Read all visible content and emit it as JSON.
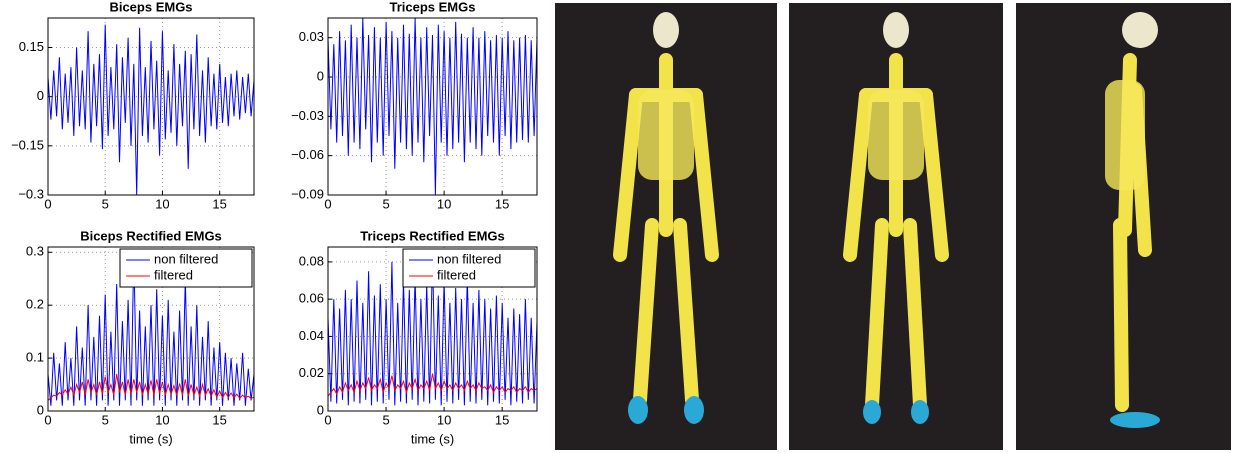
{
  "chart_data": [
    {
      "type": "line",
      "title": "Biceps EMGs",
      "color": "#0000ff",
      "x": [
        0,
        0.25,
        0.5,
        0.75,
        1,
        1.25,
        1.5,
        1.75,
        2,
        2.25,
        2.5,
        2.75,
        3,
        3.25,
        3.5,
        3.75,
        4,
        4.25,
        4.5,
        4.75,
        5,
        5.25,
        5.5,
        5.75,
        6,
        6.25,
        6.5,
        6.75,
        7,
        7.25,
        7.5,
        7.75,
        8,
        8.25,
        8.5,
        8.75,
        9,
        9.25,
        9.5,
        9.75,
        10,
        10.25,
        10.5,
        10.75,
        11,
        11.25,
        11.5,
        11.75,
        12,
        12.25,
        12.5,
        12.75,
        13,
        13.25,
        13.5,
        13.75,
        14,
        14.25,
        14.5,
        14.75,
        15,
        15.25,
        15.5,
        15.75,
        16,
        16.25,
        16.5,
        16.75,
        17,
        17.25,
        17.5,
        17.75,
        18
      ],
      "values": [
        0.06,
        -0.07,
        0.08,
        -0.06,
        0.12,
        -0.1,
        0.07,
        -0.08,
        0.09,
        -0.12,
        0.15,
        -0.09,
        0.08,
        -0.1,
        0.2,
        -0.14,
        0.1,
        -0.09,
        0.13,
        -0.16,
        0.22,
        -0.12,
        0.09,
        -0.1,
        0.16,
        -0.2,
        0.12,
        -0.08,
        0.18,
        -0.15,
        0.1,
        -0.3,
        0.21,
        -0.12,
        0.09,
        -0.14,
        0.17,
        -0.1,
        0.11,
        -0.18,
        0.2,
        -0.13,
        0.08,
        -0.11,
        0.16,
        -0.15,
        0.1,
        -0.09,
        0.14,
        -0.22,
        0.13,
        -0.1,
        0.19,
        -0.12,
        0.08,
        -0.14,
        0.12,
        -0.09,
        0.07,
        -0.1,
        0.1,
        -0.08,
        0.06,
        -0.09,
        0.07,
        -0.06,
        0.08,
        -0.07,
        0.06,
        -0.05,
        0.07,
        -0.06,
        0.05
      ],
      "xlim": [
        0,
        18
      ],
      "xticks": [
        0,
        5,
        10,
        15
      ],
      "ylim": [
        -0.3,
        0.24
      ],
      "yticks": [
        {
          "value": -0.3,
          "label": "−0.3"
        },
        {
          "value": -0.15,
          "label": "−0.15"
        },
        0,
        0.15
      ],
      "grid": true
    },
    {
      "type": "line",
      "title": "Triceps EMGs",
      "color": "#0000ff",
      "x": [
        0,
        0.25,
        0.5,
        0.75,
        1,
        1.25,
        1.5,
        1.75,
        2,
        2.25,
        2.5,
        2.75,
        3,
        3.25,
        3.5,
        3.75,
        4,
        4.25,
        4.5,
        4.75,
        5,
        5.25,
        5.5,
        5.75,
        6,
        6.25,
        6.5,
        6.75,
        7,
        7.25,
        7.5,
        7.75,
        8,
        8.25,
        8.5,
        8.75,
        9,
        9.25,
        9.5,
        9.75,
        10,
        10.25,
        10.5,
        10.75,
        11,
        11.25,
        11.5,
        11.75,
        12,
        12.25,
        12.5,
        12.75,
        13,
        13.25,
        13.5,
        13.75,
        14,
        14.25,
        14.5,
        14.75,
        15,
        15.25,
        15.5,
        15.75,
        16,
        16.25,
        16.5,
        16.75,
        17,
        17.25,
        17.5,
        17.75,
        18
      ],
      "values": [
        0.03,
        -0.04,
        0.025,
        -0.05,
        0.035,
        -0.045,
        0.028,
        -0.06,
        0.04,
        -0.05,
        0.03,
        -0.055,
        0.045,
        -0.04,
        0.032,
        -0.065,
        0.038,
        -0.05,
        0.03,
        -0.06,
        0.042,
        -0.045,
        0.035,
        -0.07,
        0.03,
        -0.05,
        0.04,
        -0.055,
        0.033,
        -0.06,
        0.045,
        -0.05,
        0.03,
        -0.065,
        0.038,
        -0.045,
        0.032,
        -0.09,
        0.04,
        -0.05,
        0.035,
        -0.06,
        0.03,
        -0.055,
        0.042,
        -0.05,
        0.033,
        -0.065,
        0.03,
        -0.05,
        0.038,
        -0.055,
        0.03,
        -0.06,
        0.035,
        -0.045,
        0.028,
        -0.05,
        0.032,
        -0.06,
        0.03,
        -0.045,
        0.035,
        -0.055,
        0.028,
        -0.05,
        0.03,
        -0.048,
        0.032,
        -0.05,
        0.028,
        -0.045,
        0.03
      ],
      "xlim": [
        0,
        18
      ],
      "xticks": [
        0,
        5,
        10,
        15
      ],
      "ylim": [
        -0.09,
        0.045
      ],
      "yticks": [
        {
          "value": -0.09,
          "label": "−0.09"
        },
        {
          "value": -0.06,
          "label": "−0.06"
        },
        {
          "value": -0.03,
          "label": "−0.03"
        },
        0,
        0.03
      ],
      "grid": true
    },
    {
      "type": "line",
      "title": "Biceps Rectified EMGs",
      "x_label": "time (s)",
      "legend": "upper right",
      "x": [
        0,
        0.25,
        0.5,
        0.75,
        1,
        1.25,
        1.5,
        1.75,
        2,
        2.25,
        2.5,
        2.75,
        3,
        3.25,
        3.5,
        3.75,
        4,
        4.25,
        4.5,
        4.75,
        5,
        5.25,
        5.5,
        5.75,
        6,
        6.25,
        6.5,
        6.75,
        7,
        7.25,
        7.5,
        7.75,
        8,
        8.25,
        8.5,
        8.75,
        9,
        9.25,
        9.5,
        9.75,
        10,
        10.25,
        10.5,
        10.75,
        11,
        11.25,
        11.5,
        11.75,
        12,
        12.25,
        12.5,
        12.75,
        13,
        13.25,
        13.5,
        13.75,
        14,
        14.25,
        14.5,
        14.75,
        15,
        15.25,
        15.5,
        15.75,
        16,
        16.25,
        16.5,
        16.75,
        17,
        17.25,
        17.5,
        17.75,
        18
      ],
      "series": [
        {
          "name": "non filtered",
          "color": "#0000ff",
          "values": [
            0.07,
            0.01,
            0.11,
            0.02,
            0.09,
            0.01,
            0.13,
            0.02,
            0.1,
            0.01,
            0.16,
            0.02,
            0.12,
            0.01,
            0.2,
            0.02,
            0.14,
            0.01,
            0.18,
            0.02,
            0.22,
            0.01,
            0.15,
            0.02,
            0.24,
            0.01,
            0.17,
            0.02,
            0.21,
            0.01,
            0.3,
            0.02,
            0.19,
            0.01,
            0.16,
            0.02,
            0.2,
            0.01,
            0.23,
            0.02,
            0.18,
            0.01,
            0.21,
            0.02,
            0.15,
            0.01,
            0.19,
            0.02,
            0.25,
            0.01,
            0.16,
            0.02,
            0.2,
            0.01,
            0.14,
            0.02,
            0.17,
            0.01,
            0.12,
            0.02,
            0.13,
            0.01,
            0.11,
            0.02,
            0.1,
            0.01,
            0.09,
            0.02,
            0.11,
            0.01,
            0.08,
            0.02,
            0.07
          ]
        },
        {
          "name": "filtered",
          "color": "#ff0000",
          "values": [
            0.02,
            0.025,
            0.03,
            0.028,
            0.035,
            0.03,
            0.04,
            0.032,
            0.045,
            0.03,
            0.05,
            0.035,
            0.055,
            0.03,
            0.06,
            0.035,
            0.05,
            0.03,
            0.055,
            0.032,
            0.065,
            0.035,
            0.05,
            0.03,
            0.07,
            0.035,
            0.055,
            0.03,
            0.06,
            0.032,
            0.06,
            0.035,
            0.055,
            0.03,
            0.05,
            0.032,
            0.058,
            0.03,
            0.06,
            0.033,
            0.055,
            0.03,
            0.05,
            0.032,
            0.048,
            0.03,
            0.052,
            0.03,
            0.06,
            0.028,
            0.05,
            0.03,
            0.045,
            0.028,
            0.05,
            0.03,
            0.042,
            0.028,
            0.04,
            0.026,
            0.038,
            0.025,
            0.035,
            0.026,
            0.034,
            0.025,
            0.032,
            0.024,
            0.03,
            0.025,
            0.028,
            0.024,
            0.026
          ]
        }
      ],
      "xlim": [
        0,
        18
      ],
      "xticks": [
        0,
        5,
        10,
        15
      ],
      "ylim": [
        0,
        0.31
      ],
      "yticks": [
        0,
        0.1,
        0.2,
        0.3
      ],
      "grid": true
    },
    {
      "type": "line",
      "title": "Triceps Rectified EMGs",
      "x_label": "time (s)",
      "legend": "upper right",
      "x": [
        0,
        0.25,
        0.5,
        0.75,
        1,
        1.25,
        1.5,
        1.75,
        2,
        2.25,
        2.5,
        2.75,
        3,
        3.25,
        3.5,
        3.75,
        4,
        4.25,
        4.5,
        4.75,
        5,
        5.25,
        5.5,
        5.75,
        6,
        6.25,
        6.5,
        6.75,
        7,
        7.25,
        7.5,
        7.75,
        8,
        8.25,
        8.5,
        8.75,
        9,
        9.25,
        9.5,
        9.75,
        10,
        10.25,
        10.5,
        10.75,
        11,
        11.25,
        11.5,
        11.75,
        12,
        12.25,
        12.5,
        12.75,
        13,
        13.25,
        13.5,
        13.75,
        14,
        14.25,
        14.5,
        14.75,
        15,
        15.25,
        15.5,
        15.75,
        16,
        16.25,
        16.5,
        16.75,
        17,
        17.25,
        17.5,
        17.75,
        18
      ],
      "series": [
        {
          "name": "non filtered",
          "color": "#0000ff",
          "values": [
            0.05,
            0.005,
            0.06,
            0.004,
            0.055,
            0.006,
            0.065,
            0.003,
            0.06,
            0.005,
            0.07,
            0.004,
            0.058,
            0.006,
            0.075,
            0.003,
            0.062,
            0.005,
            0.068,
            0.004,
            0.06,
            0.006,
            0.08,
            0.003,
            0.058,
            0.005,
            0.07,
            0.004,
            0.065,
            0.006,
            0.072,
            0.003,
            0.06,
            0.005,
            0.068,
            0.004,
            0.085,
            0.006,
            0.062,
            0.003,
            0.07,
            0.005,
            0.058,
            0.004,
            0.066,
            0.006,
            0.06,
            0.003,
            0.072,
            0.005,
            0.058,
            0.004,
            0.065,
            0.006,
            0.06,
            0.003,
            0.055,
            0.005,
            0.062,
            0.004,
            0.058,
            0.006,
            0.05,
            0.003,
            0.055,
            0.005,
            0.052,
            0.004,
            0.06,
            0.006,
            0.05,
            0.004,
            0.048
          ]
        },
        {
          "name": "filtered",
          "color": "#ff0000",
          "values": [
            0.008,
            0.01,
            0.012,
            0.009,
            0.013,
            0.01,
            0.015,
            0.011,
            0.014,
            0.01,
            0.016,
            0.011,
            0.015,
            0.012,
            0.018,
            0.011,
            0.014,
            0.012,
            0.017,
            0.01,
            0.015,
            0.012,
            0.019,
            0.011,
            0.014,
            0.012,
            0.016,
            0.01,
            0.015,
            0.012,
            0.017,
            0.011,
            0.014,
            0.012,
            0.016,
            0.011,
            0.02,
            0.012,
            0.015,
            0.011,
            0.016,
            0.012,
            0.014,
            0.011,
            0.015,
            0.012,
            0.014,
            0.011,
            0.016,
            0.012,
            0.014,
            0.011,
            0.015,
            0.012,
            0.013,
            0.011,
            0.014,
            0.01,
            0.013,
            0.011,
            0.013,
            0.01,
            0.012,
            0.011,
            0.013,
            0.01,
            0.012,
            0.011,
            0.013,
            0.01,
            0.012,
            0.011,
            0.012
          ]
        }
      ],
      "xlim": [
        0,
        18
      ],
      "xticks": [
        0,
        5,
        10,
        15
      ],
      "ylim": [
        0,
        0.088
      ],
      "yticks": [
        0,
        0.02,
        0.04,
        0.06,
        0.08
      ],
      "grid": true
    }
  ]
}
